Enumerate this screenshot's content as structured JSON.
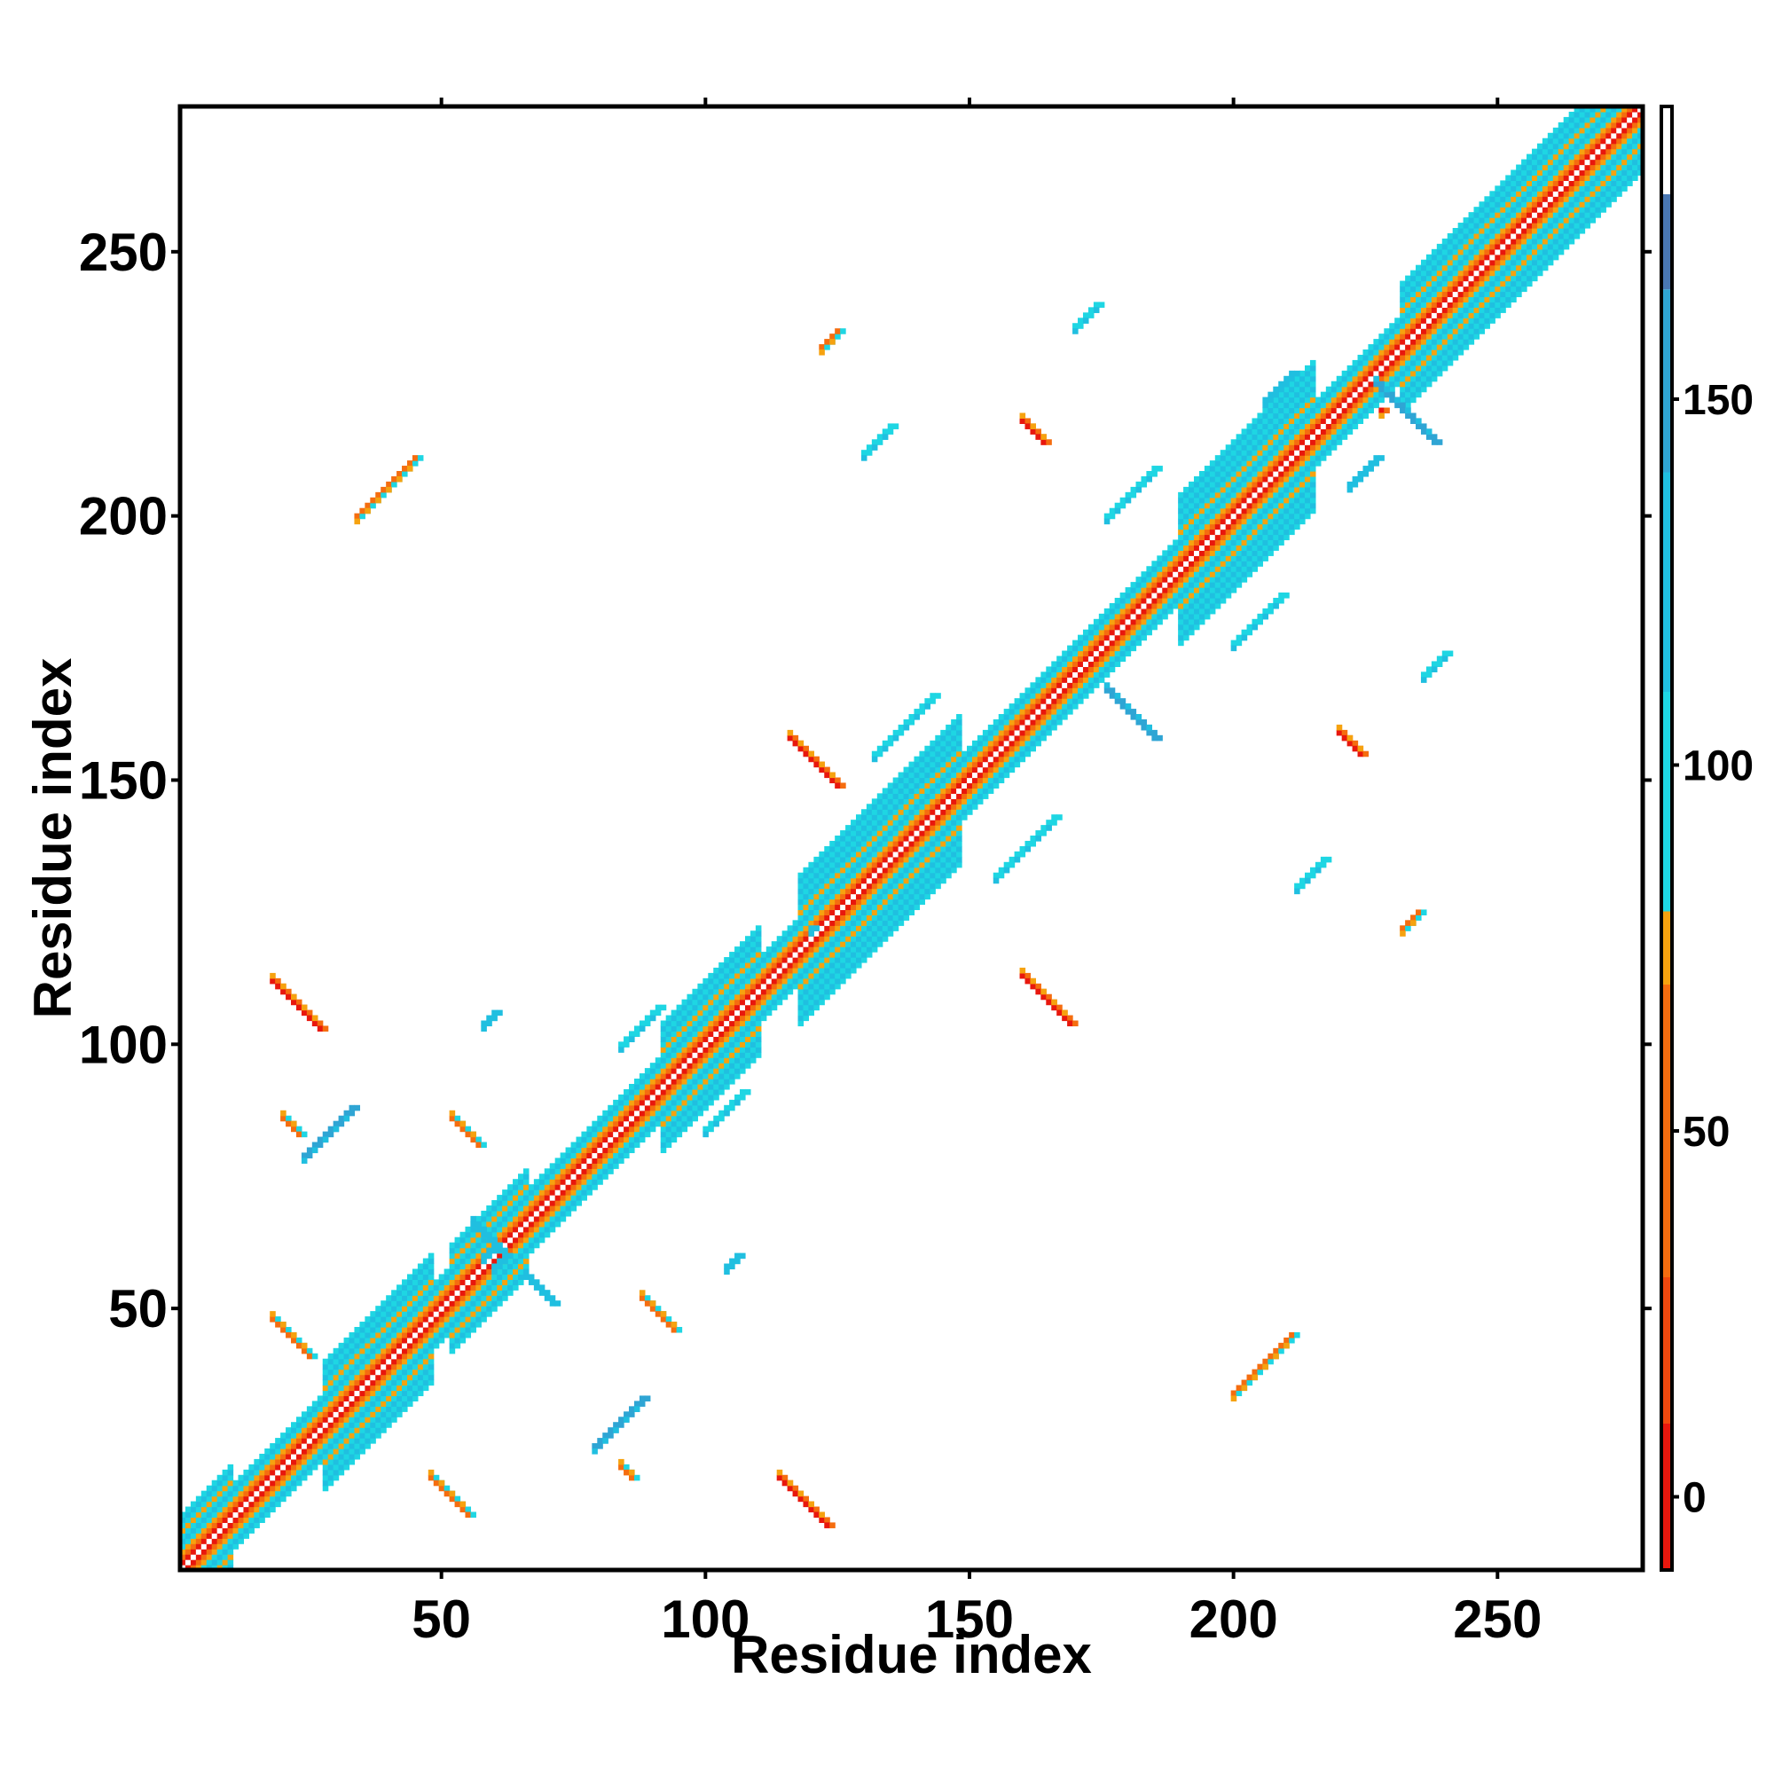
{
  "chart_data": {
    "type": "heatmap",
    "title": "",
    "xlabel": "Residue index",
    "ylabel": "Residue index",
    "xlim": [
      1,
      277
    ],
    "ylim": [
      1,
      277
    ],
    "xticks": [
      50,
      100,
      150,
      200,
      250
    ],
    "yticks": [
      50,
      100,
      150,
      200,
      250
    ],
    "symmetric": true,
    "colorbar": {
      "range": [
        -10,
        190
      ],
      "ticks": [
        0,
        50,
        100,
        150
      ],
      "bands": [
        {
          "from": -10,
          "to": 10,
          "color": "#e8170d"
        },
        {
          "from": 10,
          "to": 30,
          "color": "#f0480e"
        },
        {
          "from": 30,
          "to": 70,
          "color": "#f56d0f"
        },
        {
          "from": 70,
          "to": 80,
          "color": "#f6a20f"
        },
        {
          "from": 80,
          "to": 110,
          "color": "#1ed6e3"
        },
        {
          "from": 110,
          "to": 140,
          "color": "#20bfe0"
        },
        {
          "from": 140,
          "to": 165,
          "color": "#2fa5d4"
        },
        {
          "from": 165,
          "to": 178,
          "color": "#4a78b4"
        },
        {
          "from": 178,
          "to": 190,
          "color": "#ffffff"
        }
      ]
    },
    "diagonal": {
      "from": 1,
      "to": 277,
      "width": 6
    },
    "diagonal_thick": [
      {
        "from": 1,
        "to": 10,
        "width": 10
      },
      {
        "from": 28,
        "to": 48,
        "width": 12
      },
      {
        "from": 52,
        "to": 66,
        "width": 10
      },
      {
        "from": 92,
        "to": 110,
        "width": 12
      },
      {
        "from": 118,
        "to": 148,
        "width": 14
      },
      {
        "from": 190,
        "to": 215,
        "width": 14
      },
      {
        "from": 232,
        "to": 277,
        "width": 12
      }
    ],
    "contacts": [
      {
        "x": 18,
        "y": 112,
        "len": 10,
        "dir": "anti",
        "value": 0
      },
      {
        "x": 52,
        "y": 86,
        "len": 6,
        "dir": "anti",
        "value": 40
      },
      {
        "x": 20,
        "y": 86,
        "len": 4,
        "dir": "anti",
        "value": 40
      },
      {
        "x": 18,
        "y": 48,
        "len": 8,
        "dir": "anti",
        "value": 40
      },
      {
        "x": 48,
        "y": 18,
        "len": 8,
        "dir": "anti",
        "value": 40
      },
      {
        "x": 88,
        "y": 52,
        "len": 7,
        "dir": "anti",
        "value": 40
      },
      {
        "x": 114,
        "y": 18,
        "len": 10,
        "dir": "anti",
        "value": 0
      },
      {
        "x": 116,
        "y": 158,
        "len": 10,
        "dir": "anti",
        "value": 0
      },
      {
        "x": 160,
        "y": 113,
        "len": 10,
        "dir": "anti",
        "value": 0
      },
      {
        "x": 160,
        "y": 218,
        "len": 5,
        "dir": "anti",
        "value": 0
      },
      {
        "x": 220,
        "y": 159,
        "len": 5,
        "dir": "anti",
        "value": 0
      },
      {
        "x": 84,
        "y": 20,
        "len": 3,
        "dir": "anti",
        "value": 40
      },
      {
        "x": 56,
        "y": 66,
        "len": 6,
        "dir": "anti",
        "value": 120
      },
      {
        "x": 66,
        "y": 56,
        "len": 6,
        "dir": "anti",
        "value": 120
      },
      {
        "x": 227,
        "y": 225,
        "len": 12,
        "dir": "anti",
        "value": 140
      },
      {
        "x": 176,
        "y": 167,
        "len": 10,
        "dir": "anti",
        "value": 140
      },
      {
        "x": 34,
        "y": 200,
        "len": 12,
        "dir": "par",
        "value": 40
      },
      {
        "x": 200,
        "y": 34,
        "len": 12,
        "dir": "par",
        "value": 40
      },
      {
        "x": 120,
        "y": 122,
        "len": 0,
        "dir": "par",
        "value": 120
      },
      {
        "x": 155,
        "y": 132,
        "len": 12,
        "dir": "par",
        "value": 100
      },
      {
        "x": 132,
        "y": 155,
        "len": 12,
        "dir": "par",
        "value": 100
      },
      {
        "x": 24,
        "y": 79,
        "len": 10,
        "dir": "par",
        "value": 140
      },
      {
        "x": 79,
        "y": 24,
        "len": 10,
        "dir": "par",
        "value": 140
      },
      {
        "x": 100,
        "y": 84,
        "len": 8,
        "dir": "par",
        "value": 100
      },
      {
        "x": 84,
        "y": 100,
        "len": 8,
        "dir": "par",
        "value": 100
      },
      {
        "x": 200,
        "y": 176,
        "len": 10,
        "dir": "par",
        "value": 100
      },
      {
        "x": 176,
        "y": 200,
        "len": 10,
        "dir": "par",
        "value": 100
      },
      {
        "x": 122,
        "y": 232,
        "len": 4,
        "dir": "par",
        "value": 60
      },
      {
        "x": 232,
        "y": 122,
        "len": 4,
        "dir": "par",
        "value": 60
      },
      {
        "x": 170,
        "y": 236,
        "len": 5,
        "dir": "par",
        "value": 100
      },
      {
        "x": 236,
        "y": 170,
        "len": 5,
        "dir": "par",
        "value": 100
      },
      {
        "x": 206,
        "y": 222,
        "len": 6,
        "dir": "par",
        "value": 120
      },
      {
        "x": 222,
        "y": 206,
        "len": 6,
        "dir": "par",
        "value": 120
      },
      {
        "x": 58,
        "y": 104,
        "len": 3,
        "dir": "par",
        "value": 120
      },
      {
        "x": 104,
        "y": 58,
        "len": 3,
        "dir": "par",
        "value": 120
      },
      {
        "x": 60,
        "y": 58,
        "len": 3,
        "dir": "par",
        "value": 120
      },
      {
        "x": 58,
        "y": 60,
        "len": 3,
        "dir": "par",
        "value": 120
      },
      {
        "x": 212,
        "y": 130,
        "len": 6,
        "dir": "par",
        "value": 100
      },
      {
        "x": 130,
        "y": 212,
        "len": 6,
        "dir": "par",
        "value": 100
      },
      {
        "x": 228,
        "y": 220,
        "len": 0,
        "dir": "par",
        "value": 0
      }
    ]
  }
}
